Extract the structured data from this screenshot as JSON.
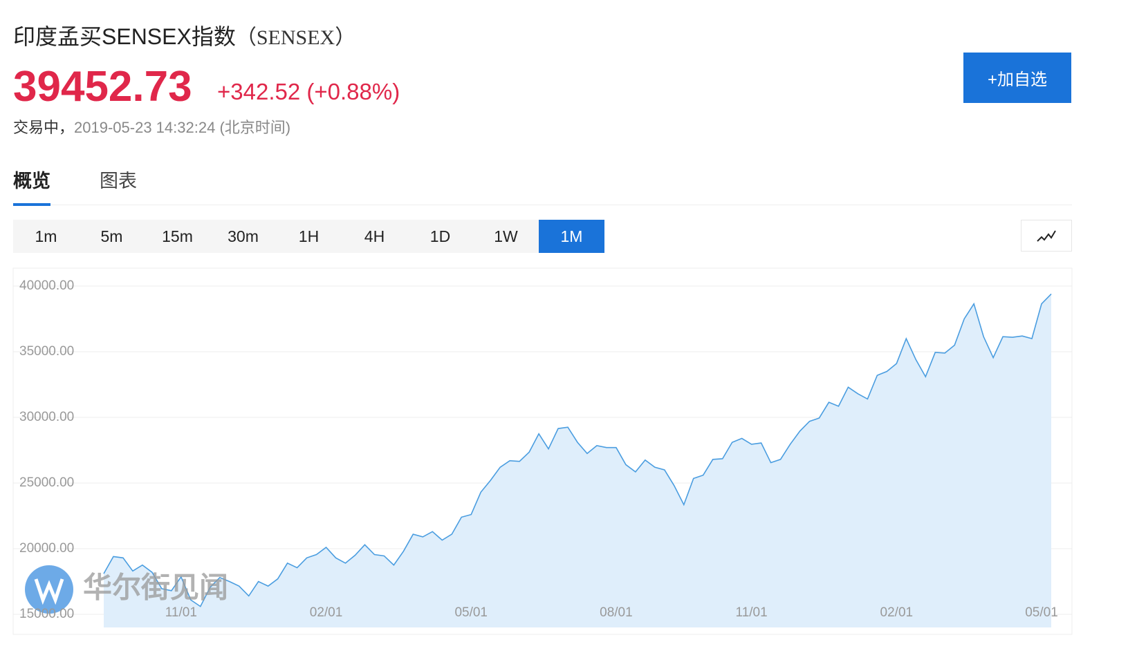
{
  "header": {
    "title": "印度孟买SENSEX指数",
    "code": "（SENSEX）",
    "price": "39452.73",
    "change": "+342.52",
    "change_percent": "(+0.88%)",
    "status": "交易中，",
    "time": "2019-05-23 14:32:24",
    "timezone": "(北京时间)",
    "add_button": "+加自选"
  },
  "tabs": [
    "概览",
    "图表"
  ],
  "active_tab": "概览",
  "periods": [
    "1m",
    "5m",
    "15m",
    "30m",
    "1H",
    "4H",
    "1D",
    "1W",
    "1M"
  ],
  "active_period": "1M",
  "watermark": "华尔街见闻",
  "chart_data": {
    "type": "area",
    "color": "#4a9de0",
    "fill": "#dfeefb",
    "grid": true,
    "categories": [
      null,
      null,
      null,
      null,
      null,
      null,
      null,
      null,
      "11/01",
      null,
      null,
      null,
      null,
      null,
      null,
      null,
      null,
      null,
      null,
      null,
      null,
      null,
      null,
      "02/01",
      null,
      null,
      null,
      null,
      null,
      null,
      null,
      null,
      null,
      null,
      null,
      null,
      null,
      null,
      "05/01",
      null,
      null,
      null,
      null,
      null,
      null,
      null,
      null,
      null,
      null,
      null,
      null,
      null,
      null,
      "08/01",
      null,
      null,
      null,
      null,
      null,
      null,
      null,
      null,
      null,
      null,
      null,
      null,
      null,
      "11/01",
      null,
      null,
      null,
      null,
      null,
      null,
      null,
      null,
      null,
      null,
      null,
      null,
      null,
      null,
      "02/01",
      null,
      null,
      null,
      null,
      null,
      null,
      null,
      null,
      null,
      null,
      null,
      null,
      null,
      null,
      "05/01",
      null
    ],
    "values": [
      18100,
      19400,
      19300,
      18300,
      18750,
      18200,
      16950,
      16800,
      17850,
      16100,
      15600,
      17050,
      17800,
      17500,
      17150,
      16400,
      17500,
      17150,
      17700,
      18900,
      18550,
      19300,
      19550,
      20100,
      19300,
      18900,
      19500,
      20300,
      19550,
      19450,
      18750,
      19800,
      21100,
      20900,
      21300,
      20650,
      21100,
      22400,
      22600,
      24300,
      25200,
      26200,
      26700,
      26650,
      27350,
      28750,
      27600,
      29150,
      29250,
      28100,
      27250,
      27850,
      27700,
      27700,
      26400,
      25850,
      26750,
      26200,
      26000,
      24800,
      23350,
      25350,
      25600,
      26800,
      26850,
      28100,
      28400,
      27950,
      28050,
      26550,
      26800,
      27950,
      28950,
      29700,
      29950,
      31150,
      30850,
      32300,
      31800,
      31400,
      33200,
      33500,
      34100,
      36000,
      34400,
      33100,
      34950,
      34900,
      35500,
      37500,
      38650,
      36150,
      34550,
      36150,
      36100,
      36200,
      36000,
      38650,
      39400
    ],
    "ylim": [
      14000,
      40000
    ],
    "yticks": [
      {
        "value": 15000,
        "label": "15000.00"
      },
      {
        "value": 20000,
        "label": "20000.00"
      },
      {
        "value": 25000,
        "label": "25000.00"
      },
      {
        "value": 30000,
        "label": "30000.00"
      },
      {
        "value": 35000,
        "label": "35000.00"
      },
      {
        "value": 40000,
        "label": "40000.00"
      }
    ]
  }
}
